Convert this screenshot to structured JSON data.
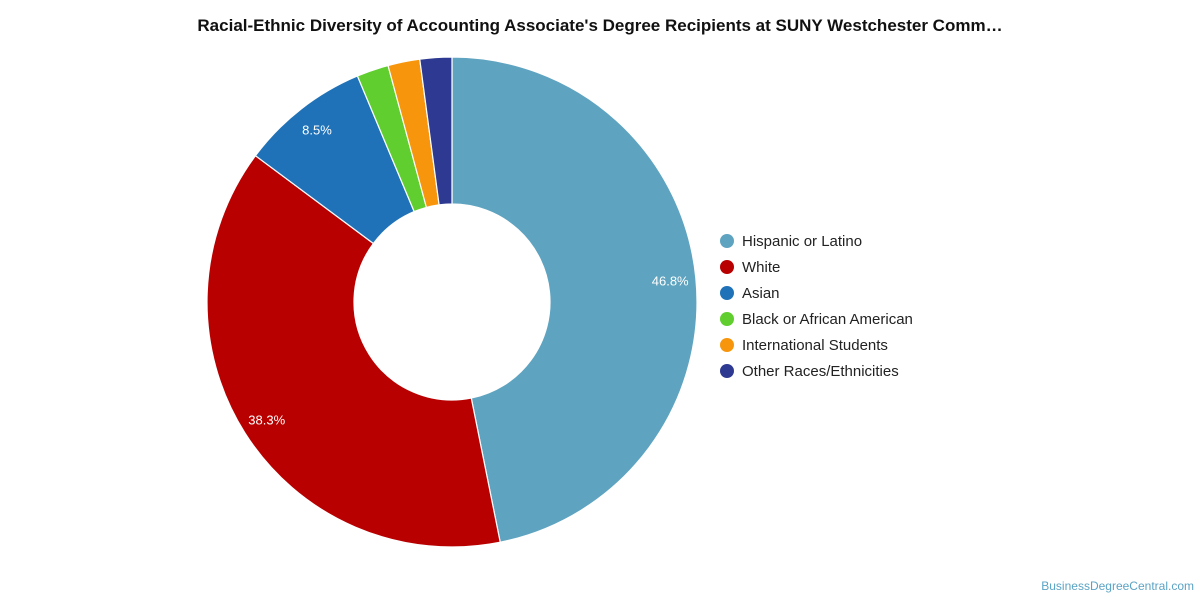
{
  "chart_data": {
    "type": "pie",
    "title": "Racial-Ethnic Diversity of Accounting Associate's Degree Recipients at SUNY Westchester Comm…",
    "legend_position": "right",
    "series": [
      {
        "name": "Hispanic or Latino",
        "value": 46.8,
        "label": "46.8%",
        "color": "#5ea3c0"
      },
      {
        "name": "White",
        "value": 38.3,
        "label": "38.3%",
        "color": "#b80000"
      },
      {
        "name": "Asian",
        "value": 8.5,
        "label": "8.5%",
        "color": "#1f72b8"
      },
      {
        "name": "Black or African American",
        "value": 2.1,
        "label": "",
        "color": "#5fce2e"
      },
      {
        "name": "International Students",
        "value": 2.1,
        "label": "",
        "color": "#f7960c"
      },
      {
        "name": "Other Races/Ethnicities",
        "value": 2.1,
        "label": "",
        "color": "#2e3a91"
      }
    ]
  },
  "watermark": "BusinessDegreeCentral.com"
}
